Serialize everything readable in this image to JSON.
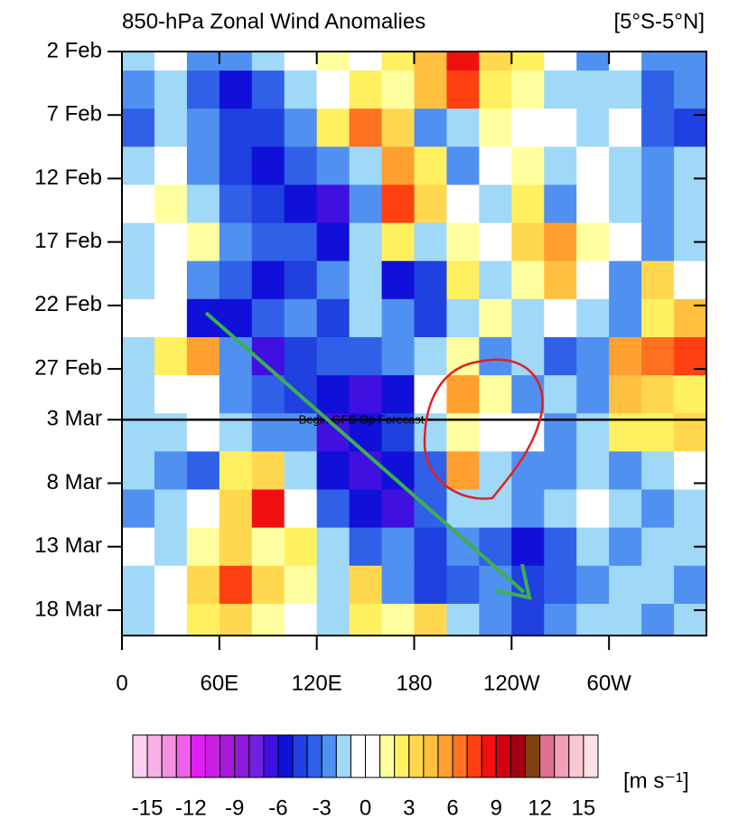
{
  "chart_data": {
    "type": "heatmap",
    "title": "850-hPa Zonal Wind Anomalies",
    "subtitle": "[5°S-5°N]",
    "x": [
      10,
      30,
      50,
      70,
      90,
      110,
      130,
      150,
      170,
      190,
      210,
      230,
      250,
      270,
      290,
      310,
      330,
      350
    ],
    "y": [
      0,
      3,
      6,
      9,
      12,
      15,
      18,
      21,
      24,
      27,
      30,
      33,
      36,
      39,
      42,
      45
    ],
    "values": [
      [
        -2,
        -1,
        -3,
        -3,
        -2,
        -1,
        1,
        -1,
        2,
        4,
        8,
        3,
        2,
        -1,
        -3,
        -1,
        -3,
        -3
      ],
      [
        -3,
        -2,
        -4,
        -6,
        -4,
        -2,
        -1,
        2,
        1,
        4,
        7,
        2,
        1,
        -2,
        -2,
        -2,
        -4,
        -3
      ],
      [
        -4,
        -2,
        -3,
        -5,
        -5,
        -3,
        2,
        6,
        3,
        -3,
        -2,
        1,
        0,
        -1,
        -2,
        -1,
        -4,
        -5
      ],
      [
        -2,
        -1,
        -3,
        -5,
        -6,
        -4,
        -3,
        -2,
        5,
        2,
        -3,
        0,
        1,
        -2,
        -1,
        -2,
        -3,
        -2
      ],
      [
        -1,
        1,
        -2,
        -4,
        -5,
        -6,
        -7,
        -3,
        7,
        3,
        -1,
        -2,
        2,
        -3,
        0,
        -2,
        -3,
        -2
      ],
      [
        -2,
        0,
        1,
        -3,
        -4,
        -4,
        -6,
        -2,
        2,
        -2,
        1,
        -1,
        3,
        5,
        1,
        -1,
        -3,
        -2
      ],
      [
        -2,
        -1,
        -3,
        -4,
        -6,
        -5,
        -3,
        -2,
        -6,
        -5,
        2,
        -2,
        1,
        4,
        -1,
        -3,
        3,
        -1
      ],
      [
        -1,
        0,
        -6,
        -6,
        -4,
        -3,
        -5,
        -2,
        -3,
        -5,
        -2,
        1,
        -2,
        -1,
        -2,
        -3,
        2,
        4
      ],
      [
        -2,
        2,
        5,
        -3,
        -7,
        -5,
        -4,
        -4,
        -3,
        -2,
        1,
        -3,
        -2,
        -4,
        -3,
        5,
        6,
        7
      ],
      [
        -2,
        -1,
        -1,
        -3,
        -4,
        -5,
        -6,
        -7,
        -6,
        -1,
        5,
        1,
        -3,
        -2,
        -3,
        4,
        3,
        2
      ],
      [
        -2,
        -2,
        -1,
        -2,
        -3,
        -3,
        -7,
        -6,
        -5,
        -2,
        1,
        0,
        -1,
        -3,
        -2,
        2,
        2,
        3
      ],
      [
        -2,
        -3,
        -4,
        2,
        3,
        -2,
        -6,
        -7,
        -6,
        -4,
        5,
        -2,
        -3,
        -3,
        -2,
        -3,
        -2,
        -1
      ],
      [
        -3,
        -2,
        -1,
        3,
        8,
        -1,
        -4,
        -6,
        -7,
        -4,
        -2,
        -2,
        -3,
        -2,
        -1,
        -2,
        -3,
        -2
      ],
      [
        -1,
        -2,
        1,
        3,
        1,
        2,
        -2,
        -4,
        -3,
        -5,
        -3,
        -4,
        -6,
        -4,
        -2,
        -3,
        -2,
        -2
      ],
      [
        -2,
        -1,
        3,
        7,
        3,
        1,
        -2,
        3,
        -3,
        -5,
        -4,
        -3,
        -5,
        -4,
        -3,
        -2,
        -2,
        -3
      ],
      [
        -2,
        0,
        2,
        3,
        1,
        -1,
        -2,
        2,
        1,
        3,
        -2,
        -3,
        -5,
        -3,
        -2,
        -2,
        -3,
        -2
      ]
    ],
    "xlim": [
      0,
      360
    ],
    "xticks": [
      0,
      {
        "value": 60,
        "label": "60E"
      },
      {
        "value": 120,
        "label": "120E"
      },
      180,
      {
        "value": 240,
        "label": "120W"
      },
      {
        "value": 300,
        "label": "60W"
      }
    ],
    "ylim": [
      0,
      46
    ],
    "yticks": [
      {
        "value": 0,
        "label": "2 Feb"
      },
      {
        "value": 5,
        "label": "7 Feb"
      },
      {
        "value": 10,
        "label": "12 Feb"
      },
      {
        "value": 15,
        "label": "17 Feb"
      },
      {
        "value": 20,
        "label": "22 Feb"
      },
      {
        "value": 25,
        "label": "27 Feb"
      },
      {
        "value": 29,
        "label": "3 Mar"
      },
      {
        "value": 34,
        "label": "8 Mar"
      },
      {
        "value": 39,
        "label": "13 Mar"
      },
      {
        "value": 44,
        "label": "18 Mar"
      }
    ],
    "annotation": {
      "text": "Begin GFS Op Forecast",
      "y": 29
    },
    "colorbar": {
      "label": "[m s⁻¹]",
      "levels": [
        -15,
        -14,
        -13,
        -12,
        -11,
        -10,
        -9,
        -8,
        -7,
        -6,
        -5,
        -4,
        -3,
        -2,
        -1,
        0,
        1,
        2,
        3,
        4,
        5,
        6,
        7,
        8,
        9,
        10,
        11,
        12,
        13,
        14,
        15
      ],
      "ticks": [
        -15,
        -12,
        -9,
        -6,
        -3,
        0,
        3,
        6,
        9,
        12,
        15
      ],
      "colors": [
        "#fcd0f0",
        "#f8b0e8",
        "#f490e0",
        "#f060e8",
        "#e020f0",
        "#c820e0",
        "#a818d8",
        "#9018d8",
        "#7020e0",
        "#4010e0",
        "#1010d8",
        "#2040e0",
        "#3060e8",
        "#5090f0",
        "#a0d8f8",
        "#ffffff",
        "#ffffff",
        "#ffffa0",
        "#fff060",
        "#ffd850",
        "#ffc040",
        "#ffa030",
        "#ff7020",
        "#ff4010",
        "#f01010",
        "#d00010",
        "#a00010",
        "#804010",
        "#e07090",
        "#f0a0b8",
        "#f8c8d0",
        "#fde0e4"
      ]
    }
  }
}
